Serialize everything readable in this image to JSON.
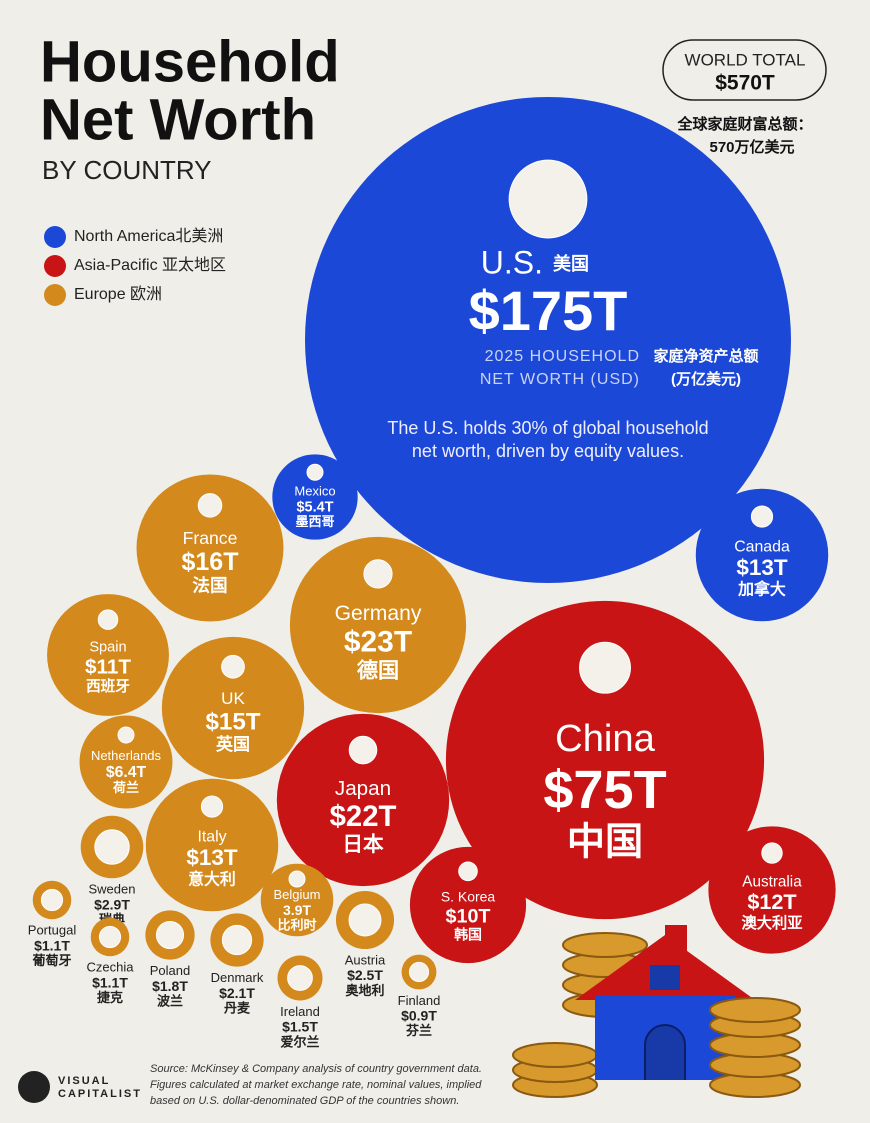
{
  "chart_data": {
    "type": "bubble",
    "title": [
      "Household",
      "Net Worth"
    ],
    "subtitle": "BY COUNTRY",
    "total": {
      "label": "WORLD TOTAL",
      "value": 570,
      "value_label": "$570T",
      "note": [
        "全球家庭财富总额：",
        "570万亿美元"
      ]
    },
    "highlight": {
      "measure": [
        "2025 HOUSEHOLD",
        "NET WORTH (USD)"
      ],
      "measure_zh": [
        "家庭净资产总额",
        "(万亿美元)"
      ],
      "annotation": [
        "The U.S. holds 30% of global household",
        "net worth, driven by equity values."
      ]
    },
    "series": [
      {
        "name": "North America北美洲",
        "color": "#1c48d8",
        "categories": [
          "U.S.",
          "Mexico",
          "Canada"
        ],
        "categories_zh": [
          "美国",
          "墨西哥",
          "加拿大"
        ],
        "values": [
          175,
          5.4,
          13
        ],
        "value_labels": [
          "$175T",
          "$5.4T",
          "$13T"
        ]
      },
      {
        "name": "Asia-Pacific 亚太地区",
        "color": "#c81414",
        "categories": [
          "China",
          "Japan",
          "S. Korea",
          "Australia"
        ],
        "categories_zh": [
          "中国",
          "日本",
          "韩国",
          "澳大利亚"
        ],
        "values": [
          75,
          22,
          10,
          12
        ],
        "value_labels": [
          "$75T",
          "$22T",
          "$10T",
          "$12T"
        ]
      },
      {
        "name": "Europe 欧洲",
        "color": "#d3891b",
        "categories": [
          "France",
          "Germany",
          "Spain",
          "UK",
          "Netherlands",
          "Italy",
          "Sweden",
          "Portugal",
          "Czechia",
          "Poland",
          "Denmark",
          "Belgium",
          "Ireland",
          "Austria",
          "Finland"
        ],
        "categories_zh": [
          "法国",
          "德国",
          "西班牙",
          "英国",
          "荷兰",
          "意大利",
          "瑞典",
          "葡萄牙",
          "捷克",
          "波兰",
          "丹麦",
          "比利时",
          "爱尔兰",
          "奥地利",
          "芬兰"
        ],
        "values": [
          16,
          23,
          11,
          15,
          6.4,
          13,
          2.9,
          1.1,
          1.1,
          1.8,
          2.1,
          3.9,
          1.5,
          2.5,
          0.9
        ],
        "value_labels": [
          "$16T",
          "$23T",
          "$11T",
          "$15T",
          "$6.4T",
          "$13T",
          "$2.9T",
          "$1.1T",
          "$1.1T",
          "$1.8T",
          "$2.1T",
          "3.9T",
          "$1.5T",
          "$2.5T",
          "$0.9T"
        ]
      }
    ],
    "source": [
      "Source: McKinsey & Company analysis of country government data.",
      "Figures calculated at market exchange rate, nominal values, implied",
      "based on U.S. dollar-denominated GDP of the countries shown."
    ],
    "brand": [
      "VISUAL",
      "CAPITALIST"
    ]
  }
}
